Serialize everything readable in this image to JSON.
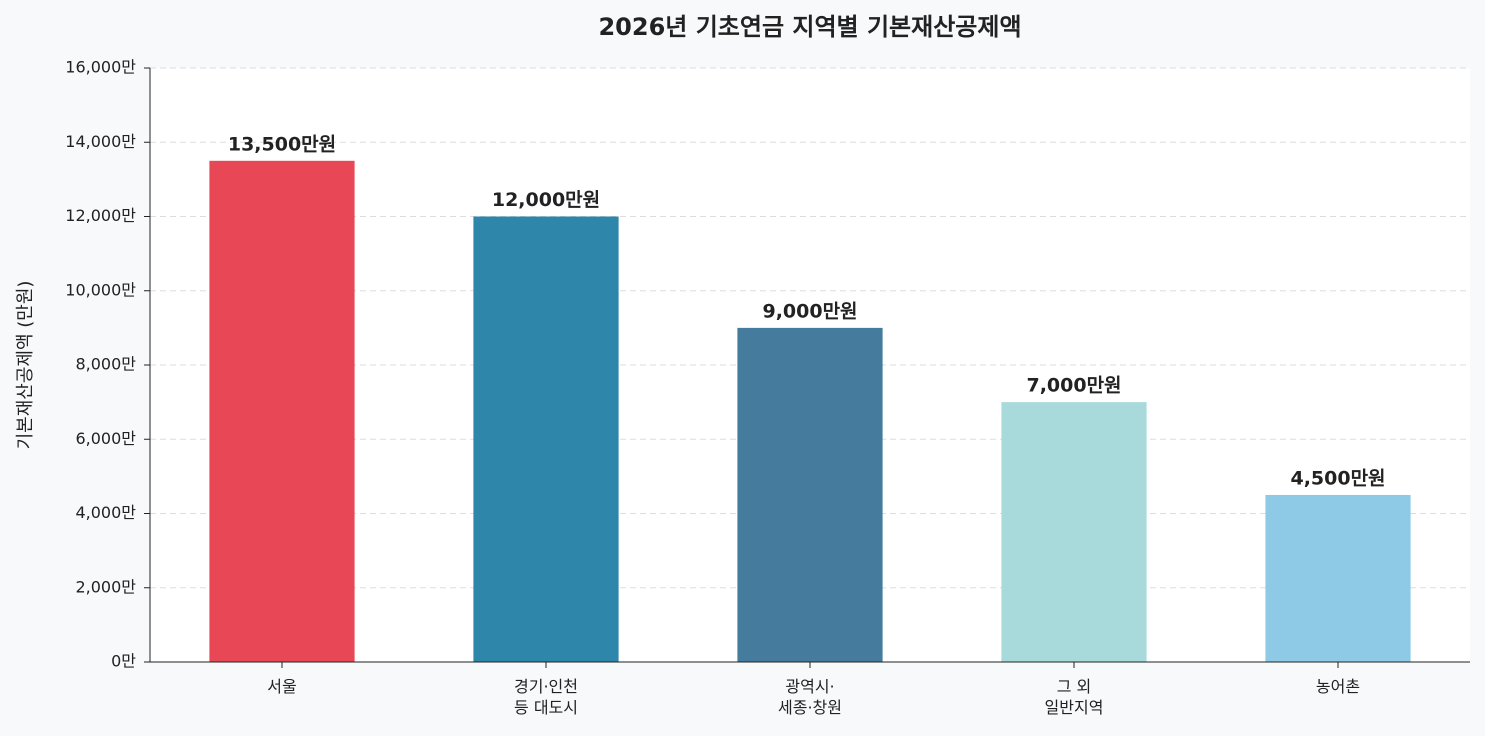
{
  "chart_data": {
    "type": "bar",
    "title": "2026년 기초연금 지역별 기본재산공제액",
    "y_label": "기본재산공제액 (만원)",
    "categories": [
      "서울",
      "경기·인천\n등 대도시",
      "광역시·\n세종·창원",
      "그 외\n일반지역",
      "농어촌"
    ],
    "values": [
      13500,
      12000,
      9000,
      7000,
      4500
    ],
    "value_labels": [
      "13,500만원",
      "12,000만원",
      "9,000만원",
      "7,000만원",
      "4,500만원"
    ],
    "colors": [
      "#e84855",
      "#2e86ab",
      "#457b9d",
      "#a8dadc",
      "#8ecae6"
    ],
    "ylim": [
      0,
      16000
    ],
    "yticks": [
      {
        "value": 0,
        "label": "0만"
      },
      {
        "value": 2000,
        "label": "2,000만"
      },
      {
        "value": 4000,
        "label": "4,000만"
      },
      {
        "value": 6000,
        "label": "6,000만"
      },
      {
        "value": 8000,
        "label": "8,000만"
      },
      {
        "value": 10000,
        "label": "10,000만"
      },
      {
        "value": 12000,
        "label": "12,000만"
      },
      {
        "value": 14000,
        "label": "14,000만"
      },
      {
        "value": 16000,
        "label": "16,000만"
      }
    ],
    "grid": true
  }
}
